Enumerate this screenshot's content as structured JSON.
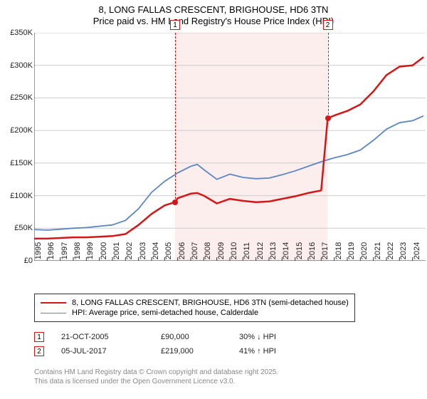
{
  "title": {
    "line1": "8, LONG FALLAS CRESCENT, BRIGHOUSE, HD6 3TN",
    "line2": "Price paid vs. HM Land Registry's House Price Index (HPI)"
  },
  "chart": {
    "type": "line",
    "background_color": "#ffffff",
    "highlight_band_color": "#fdeeee",
    "grid_color": "#cccccc",
    "axis_color": "#333333",
    "tick_fontsize": 11,
    "x": {
      "min": 1995,
      "max": 2025,
      "tick_step": 1,
      "tick_labels": [
        "1995",
        "1996",
        "1997",
        "1998",
        "1999",
        "2000",
        "2001",
        "2002",
        "2003",
        "2004",
        "2005",
        "2006",
        "2007",
        "2008",
        "2009",
        "2010",
        "2011",
        "2012",
        "2013",
        "2014",
        "2015",
        "2016",
        "2017",
        "2018",
        "2019",
        "2020",
        "2021",
        "2022",
        "2023",
        "2024"
      ]
    },
    "y": {
      "min": 0,
      "max": 350000,
      "tick_step": 50000,
      "tick_labels": [
        "£0",
        "£50K",
        "£100K",
        "£150K",
        "£200K",
        "£250K",
        "£300K",
        "£350K"
      ]
    },
    "series": [
      {
        "name": "price_paid",
        "label": "8, LONG FALLAS CRESCENT, BRIGHOUSE, HD6 3TN (semi-detached house)",
        "color": "#d41616",
        "line_width": 2.5,
        "points": [
          [
            1995,
            34000
          ],
          [
            1996,
            34000
          ],
          [
            1997,
            35000
          ],
          [
            1998,
            36000
          ],
          [
            1999,
            36000
          ],
          [
            2000,
            37000
          ],
          [
            2001,
            38000
          ],
          [
            2002,
            41000
          ],
          [
            2003,
            55000
          ],
          [
            2004,
            72000
          ],
          [
            2005,
            85000
          ],
          [
            2005.8,
            90000
          ],
          [
            2006,
            96000
          ],
          [
            2007,
            103000
          ],
          [
            2007.5,
            104000
          ],
          [
            2008,
            100000
          ],
          [
            2009,
            88000
          ],
          [
            2010,
            95000
          ],
          [
            2011,
            92000
          ],
          [
            2012,
            90000
          ],
          [
            2013,
            91000
          ],
          [
            2014,
            95000
          ],
          [
            2015,
            99000
          ],
          [
            2016,
            104000
          ],
          [
            2017,
            108000
          ],
          [
            2017.5,
            219000
          ],
          [
            2018,
            223000
          ],
          [
            2019,
            230000
          ],
          [
            2020,
            240000
          ],
          [
            2021,
            260000
          ],
          [
            2022,
            285000
          ],
          [
            2023,
            298000
          ],
          [
            2024,
            300000
          ],
          [
            2024.8,
            312000
          ]
        ]
      },
      {
        "name": "hpi",
        "label": "HPI: Average price, semi-detached house, Calderdale",
        "color": "#5a86c4",
        "line_width": 1.8,
        "points": [
          [
            1995,
            48000
          ],
          [
            1996,
            47000
          ],
          [
            1997,
            48500
          ],
          [
            1998,
            50000
          ],
          [
            1999,
            51000
          ],
          [
            2000,
            53000
          ],
          [
            2001,
            55000
          ],
          [
            2002,
            62000
          ],
          [
            2003,
            80000
          ],
          [
            2004,
            105000
          ],
          [
            2005,
            122000
          ],
          [
            2006,
            135000
          ],
          [
            2007,
            145000
          ],
          [
            2007.5,
            148000
          ],
          [
            2008,
            140000
          ],
          [
            2009,
            125000
          ],
          [
            2010,
            133000
          ],
          [
            2011,
            128000
          ],
          [
            2012,
            126000
          ],
          [
            2013,
            127000
          ],
          [
            2014,
            132000
          ],
          [
            2015,
            138000
          ],
          [
            2016,
            145000
          ],
          [
            2017,
            152000
          ],
          [
            2018,
            158000
          ],
          [
            2019,
            163000
          ],
          [
            2020,
            170000
          ],
          [
            2021,
            185000
          ],
          [
            2022,
            202000
          ],
          [
            2023,
            212000
          ],
          [
            2024,
            215000
          ],
          [
            2024.8,
            222000
          ]
        ]
      }
    ],
    "markers": [
      {
        "id": "1",
        "x": 2005.8,
        "y": 90000,
        "color": "#d41616"
      },
      {
        "id": "2",
        "x": 2017.5,
        "y": 219000,
        "color": "#d41616"
      }
    ]
  },
  "legend": {
    "items": [
      {
        "color": "#d41616",
        "width": 2.5,
        "label": "8, LONG FALLAS CRESCENT, BRIGHOUSE, HD6 3TN (semi-detached house)"
      },
      {
        "color": "#5a86c4",
        "width": 1.8,
        "label": "HPI: Average price, semi-detached house, Calderdale"
      }
    ]
  },
  "events": [
    {
      "id": "1",
      "date": "21-OCT-2005",
      "price": "£90,000",
      "hpi": "30% ↓ HPI",
      "badge_color": "#d41616"
    },
    {
      "id": "2",
      "date": "05-JUL-2017",
      "price": "£219,000",
      "hpi": "41% ↑ HPI",
      "badge_color": "#d41616"
    }
  ],
  "footnote": {
    "line1": "Contains HM Land Registry data © Crown copyright and database right 2025.",
    "line2": "This data is licensed under the Open Government Licence v3.0."
  }
}
